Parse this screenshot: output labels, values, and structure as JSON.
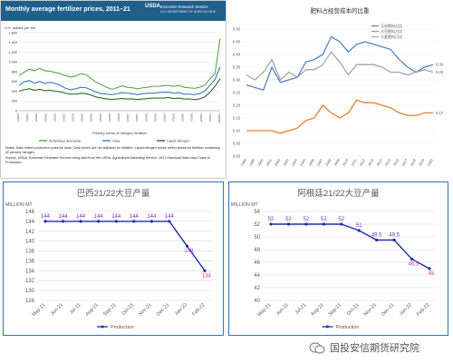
{
  "panel_top_left": {
    "title": "Monthly average fertilizer prices, 2011–21",
    "org_logo": "USDA",
    "org_name": "Economic Research Service",
    "org_dept": "U.S. DEPARTMENT OF AGRICULTURE",
    "notes": "Notes: Data reflect production costs for Iowa. Cash prices are not adjusted for inflation. Liquid nitrogen prices reflect prices for fertilizer containing 32 percent nitrogen.",
    "source": "Source: USDA, Economic Research Service using data from the USDA, Agricultural Marketing Service, 2021 Historical Data Iowa Costs of Production.",
    "colors": {
      "header": "#1f5f8b",
      "ammonia": "#5aa846",
      "urea": "#3b7bbf",
      "liquid": "#2d6a2d"
    }
  },
  "panel_top_right": {
    "colors": {
      "s1": "#4f86c6",
      "s2": "#ed7d31",
      "s3": "#a5a5a5"
    }
  },
  "panel_bottom_left": {
    "colors": {
      "line": "#1f2fa8",
      "proj": "#d42fcf",
      "grid": "#d9d9d9"
    }
  },
  "panel_bottom_right": {
    "colors": {
      "line": "#1f2fa8",
      "proj": "#d42fcf",
      "grid": "#d9d9d9"
    }
  },
  "watermark": {
    "text": "国投安信期货研究院"
  },
  "chart_data": [
    {
      "type": "line",
      "title": "Monthly average fertilizer prices, 2011–21",
      "ylabel": "U.S. dollars per ton",
      "xlabel": "Primary forms of nitrogen fertilizer",
      "ylim": [
        0,
        1600
      ],
      "yticks": [
        0,
        200,
        400,
        600,
        800,
        1000,
        1200,
        1400,
        1600
      ],
      "x_tick_labels": [
        "1/2011",
        "7/2011",
        "1/2012",
        "7/2012",
        "1/2013",
        "7/2013",
        "1/2014",
        "7/2014",
        "1/2015",
        "7/2015",
        "1/2016",
        "7/2016",
        "1/2017",
        "7/2017",
        "1/2018",
        "7/2018",
        "1/2019",
        "7/2019",
        "1/2020",
        "7/2020",
        "1/2021",
        "7/2021",
        "10/2021"
      ],
      "grid": true,
      "legend": "bottom",
      "series": [
        {
          "name": "Anhydrous ammonia",
          "values": [
            720,
            790,
            850,
            820,
            870,
            820,
            810,
            780,
            760,
            720,
            690,
            710,
            760,
            740,
            660,
            580,
            530,
            480,
            440,
            470,
            510,
            480,
            470,
            450,
            470,
            480,
            500,
            500,
            510,
            520,
            500,
            520,
            480,
            470,
            460,
            480,
            520,
            650,
            760,
            1480
          ]
        },
        {
          "name": "Urea",
          "values": [
            520,
            590,
            620,
            560,
            600,
            560,
            580,
            560,
            520,
            460,
            430,
            450,
            480,
            470,
            430,
            380,
            350,
            340,
            330,
            350,
            370,
            360,
            350,
            330,
            350,
            360,
            360,
            370,
            380,
            380,
            360,
            370,
            340,
            340,
            330,
            350,
            400,
            520,
            640,
            900
          ]
        },
        {
          "name": "Liquid nitrogen",
          "values": [
            400,
            430,
            450,
            420,
            440,
            410,
            420,
            400,
            390,
            360,
            340,
            340,
            360,
            350,
            320,
            280,
            260,
            240,
            230,
            240,
            250,
            240,
            240,
            230,
            240,
            250,
            260,
            260,
            260,
            270,
            250,
            260,
            240,
            240,
            230,
            240,
            280,
            380,
            500,
            660
          ]
        }
      ]
    },
    {
      "type": "line",
      "title": "肥料占经营成本的比重",
      "ylim": [
        0,
        0.5
      ],
      "yticks": [
        0,
        0.05,
        0.1,
        0.15,
        0.2,
        0.25,
        0.3,
        0.35,
        0.4,
        0.45,
        0.5
      ],
      "categories": [
        "1998",
        "1999",
        "2000",
        "2001",
        "2002",
        "2003",
        "2004",
        "2005",
        "2006",
        "2007",
        "2008",
        "2009",
        "2010",
        "2011",
        "2012",
        "2013",
        "2014",
        "2015",
        "2016",
        "2017",
        "2018",
        "2019",
        "2020"
      ],
      "legend": "top-right",
      "series": [
        {
          "name": "玉米肥料占比",
          "values": [
            0.28,
            0.27,
            0.26,
            0.35,
            0.29,
            0.3,
            0.31,
            0.37,
            0.38,
            0.4,
            0.47,
            0.45,
            0.41,
            0.44,
            0.45,
            0.44,
            0.43,
            0.42,
            0.38,
            0.35,
            0.33,
            0.35,
            0.36
          ]
        },
        {
          "name": "大豆肥料占比",
          "values": [
            0.1,
            0.1,
            0.1,
            0.1,
            0.09,
            0.1,
            0.11,
            0.14,
            0.15,
            0.2,
            0.17,
            0.15,
            0.17,
            0.22,
            0.21,
            0.21,
            0.2,
            0.19,
            0.17,
            0.16,
            0.16,
            0.17,
            0.17
          ]
        },
        {
          "name": "小麦肥料占比",
          "values": [
            0.32,
            0.3,
            0.33,
            0.38,
            0.3,
            0.33,
            0.31,
            0.34,
            0.34,
            0.36,
            0.41,
            0.37,
            0.32,
            0.36,
            0.36,
            0.36,
            0.35,
            0.33,
            0.33,
            0.32,
            0.33,
            0.34,
            0.33
          ]
        }
      ],
      "end_labels": [
        "0.36",
        "0.33",
        "0.17"
      ]
    },
    {
      "type": "line",
      "title": "巴西21/22大豆产量",
      "ylabel": "MILLION MT",
      "categories": [
        "May-21",
        "Jun-21",
        "Jul-21",
        "Aug-21",
        "Sep-21",
        "Oct-21",
        "Nov-21",
        "Dec-21",
        "Jan-22",
        "Feb-22"
      ],
      "ylim": [
        128,
        146
      ],
      "yticks": [
        128,
        130,
        132,
        134,
        136,
        138,
        140,
        142,
        144,
        146
      ],
      "series": [
        {
          "name": "Production",
          "values": [
            144,
            144,
            144,
            144,
            144,
            144,
            144,
            144,
            139,
            134
          ]
        }
      ],
      "data_labels": [
        "144",
        "144",
        "144",
        "144",
        "144",
        "144",
        "144",
        "144",
        "139",
        "134"
      ],
      "legend": "bottom"
    },
    {
      "type": "line",
      "title": "阿根廷21/22大豆产量",
      "ylabel": "MILLION MT",
      "categories": [
        "May-21",
        "Jun-21",
        "Jul-21",
        "Aug-21",
        "Sep-21",
        "Oct-21",
        "Nov-21",
        "Dec-21",
        "Jan-22",
        "Feb-22"
      ],
      "ylim": [
        40,
        54
      ],
      "yticks": [
        40,
        42,
        44,
        46,
        48,
        50,
        52,
        54
      ],
      "series": [
        {
          "name": "Production",
          "values": [
            52,
            52,
            52,
            52,
            52,
            51,
            49.5,
            49.5,
            46.5,
            45
          ]
        }
      ],
      "data_labels": [
        "52",
        "52",
        "52",
        "52",
        "52",
        "51",
        "49.5",
        "49.5",
        "46.5",
        "45"
      ],
      "legend": "bottom"
    }
  ]
}
